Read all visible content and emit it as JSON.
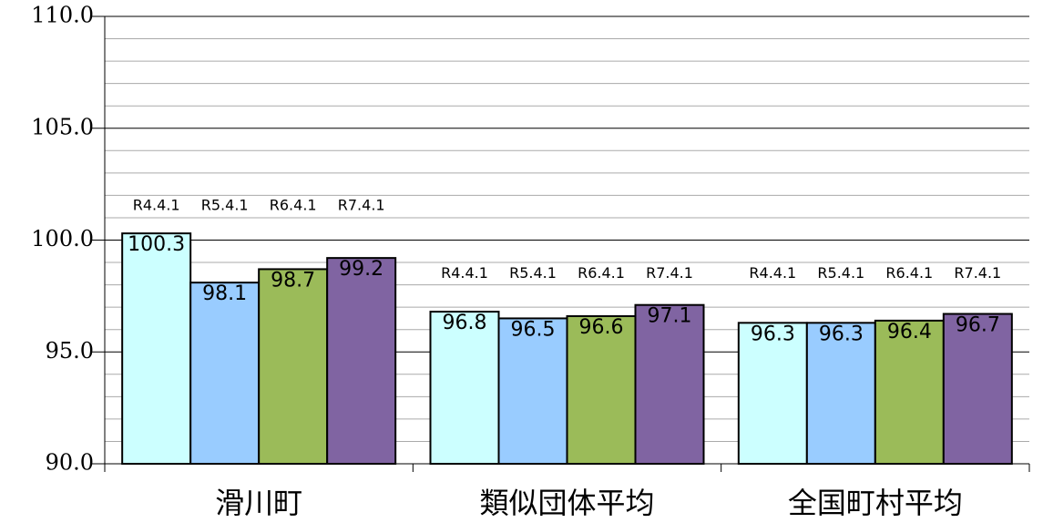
{
  "chart_data": {
    "type": "bar",
    "categories": [
      "滑川町",
      "類似団体平均",
      "全国町村平均"
    ],
    "series": [
      {
        "name": "R4.4.1",
        "color": "#ccffff",
        "values": [
          100.3,
          96.8,
          96.3
        ]
      },
      {
        "name": "R5.4.1",
        "color": "#99ccff",
        "values": [
          98.1,
          96.5,
          96.3
        ]
      },
      {
        "name": "R6.4.1",
        "color": "#9bbb59",
        "values": [
          98.7,
          96.6,
          96.4
        ]
      },
      {
        "name": "R7.4.1",
        "color": "#8064a2",
        "values": [
          99.2,
          97.1,
          96.7
        ]
      }
    ],
    "ylim": [
      90,
      110
    ],
    "yticks": [
      {
        "value": 90,
        "label": "90.0"
      },
      {
        "value": 95,
        "label": "95.0"
      },
      {
        "value": 100,
        "label": "100.0"
      },
      {
        "value": 105,
        "label": "105.0"
      },
      {
        "value": 110,
        "label": "110.0"
      }
    ],
    "y_minor_ticks": [
      91,
      92,
      93,
      94,
      96,
      97,
      98,
      99,
      101,
      102,
      103,
      104,
      106,
      107,
      108,
      109
    ],
    "grid": true
  }
}
